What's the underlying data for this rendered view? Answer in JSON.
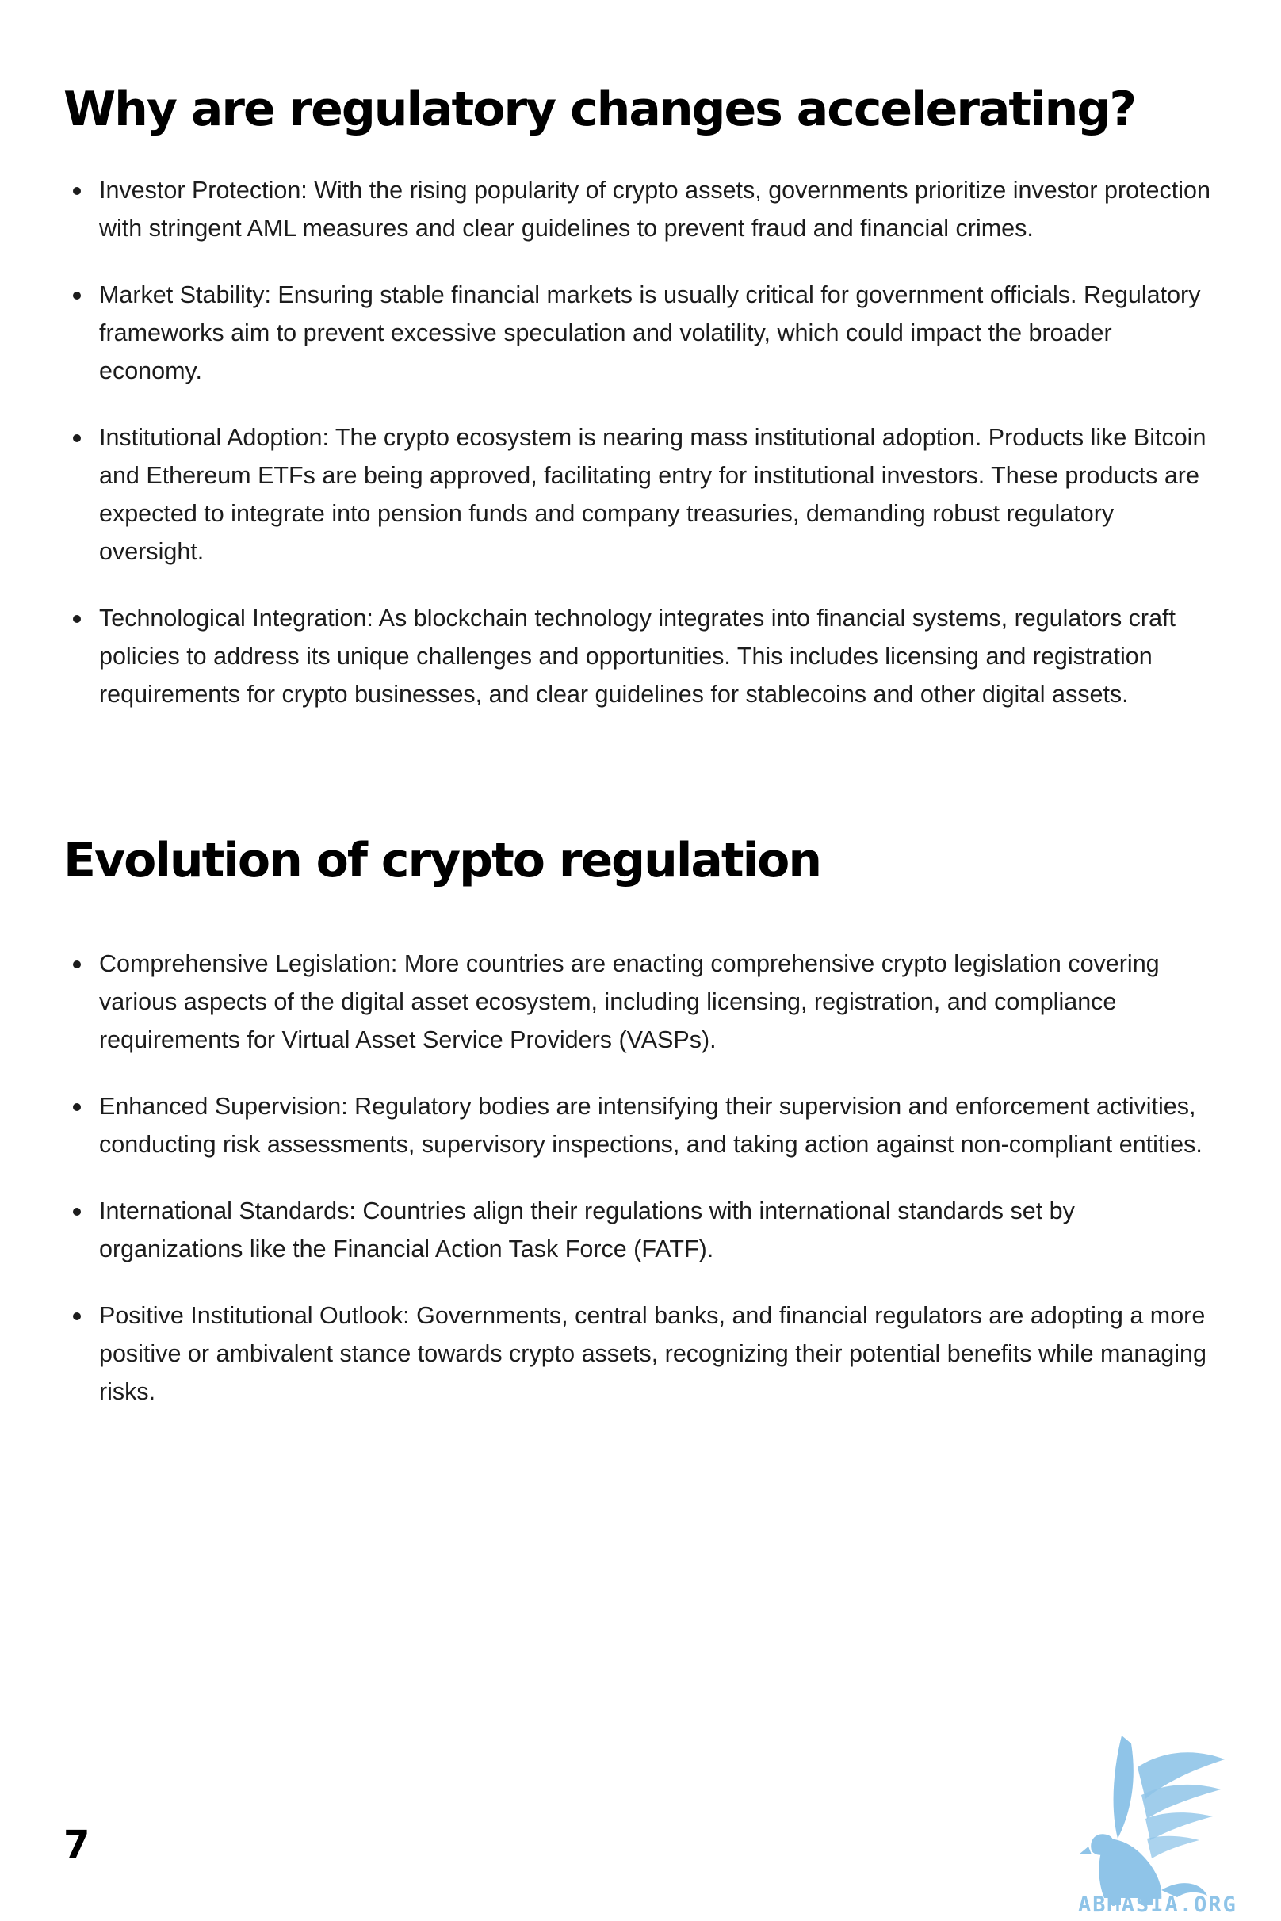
{
  "sections": [
    {
      "heading": "Why are regulatory changes accelerating?",
      "bullets": [
        "Investor Protection: With the rising popularity of crypto assets, governments prioritize investor protection with stringent AML measures and clear guidelines to prevent fraud and financial crimes.",
        "Market Stability: Ensuring stable financial markets is usually critical for government officials. Regulatory frameworks aim to prevent excessive speculation and volatility, which could impact the broader economy.",
        "Institutional Adoption: The crypto ecosystem is nearing mass institutional adoption. Products like Bitcoin and Ethereum ETFs are being approved, facilitating entry for institutional investors. These products are expected to integrate into pension funds and company treasuries, demanding robust regulatory oversight.",
        "Technological Integration: As blockchain technology integrates into financial systems, regulators craft policies to address its unique challenges and opportunities. This includes licensing and registration requirements for crypto businesses, and clear guidelines for stablecoins and other digital assets."
      ]
    },
    {
      "heading": "Evolution of crypto regulation",
      "bullets": [
        "Comprehensive Legislation: More countries are enacting comprehensive crypto legislation covering various aspects of the digital asset ecosystem, including licensing, registration, and compliance requirements for Virtual Asset Service Providers (VASPs).",
        "Enhanced Supervision: Regulatory bodies are intensifying their supervision and enforcement activities, conducting risk assessments, supervisory inspections, and taking action against non-compliant entities.",
        "International Standards: Countries align their regulations with international standards set by organizations like the Financial Action Task Force (FATF).",
        "Positive Institutional Outlook: Governments, central banks, and financial regulators are adopting a more positive or ambivalent stance towards crypto assets, recognizing their potential benefits while managing risks."
      ]
    }
  ],
  "footer": {
    "page_number": "7",
    "logo_text": "ABMASIA.ORG",
    "logo_icon": "griffin-logo-icon",
    "logo_color": "#8fc4e8"
  }
}
